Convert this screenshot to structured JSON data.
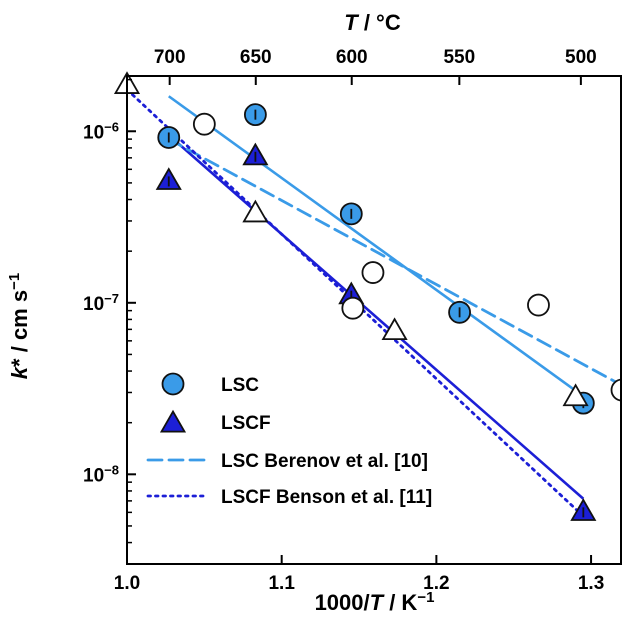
{
  "chart_data": {
    "type": "scatter",
    "xlabel": "1000/T / K⁻¹",
    "ylabel": "k* / cm s⁻¹",
    "top_xlabel": "T / °C",
    "xlim": [
      1.0,
      1.32
    ],
    "ylim": [
      3e-09,
      2.1e-06
    ],
    "yscale": "log",
    "x_ticks": [
      1.0,
      1.1,
      1.2,
      1.3
    ],
    "x_tick_labels": [
      "1.0",
      "1.1",
      "1.2",
      "1.3"
    ],
    "y_tick_values": [
      1e-08,
      1e-07,
      1e-06
    ],
    "y_tick_labels": [
      {
        "base": "10",
        "exp": "−8"
      },
      {
        "base": "10",
        "exp": "−7"
      },
      {
        "base": "10",
        "exp": "−6"
      }
    ],
    "top_ticks_celsius": [
      700,
      650,
      600,
      550,
      500
    ],
    "top_tick_labels": [
      "700",
      "650",
      "600",
      "550",
      "500"
    ],
    "grid": false,
    "legend_position": "bottom-left",
    "series": [
      {
        "name": "LSC",
        "kind": "marker",
        "marker": "circle",
        "color": "#3a9be8",
        "edge": "#111111",
        "points": [
          {
            "x": 1.027,
            "y": 9.2e-07
          },
          {
            "x": 1.083,
            "y": 1.25e-06
          },
          {
            "x": 1.145,
            "y": 3.3e-07
          },
          {
            "x": 1.215,
            "y": 8.8e-08
          },
          {
            "x": 1.295,
            "y": 2.6e-08
          }
        ]
      },
      {
        "name": "LSCF",
        "kind": "marker",
        "marker": "triangle",
        "color": "#1c1fd6",
        "edge": "#111111",
        "points": [
          {
            "x": 1.027,
            "y": 5.1e-07
          },
          {
            "x": 1.083,
            "y": 7.1e-07
          },
          {
            "x": 1.145,
            "y": 1.1e-07
          },
          {
            "x": 1.295,
            "y": 6e-09
          }
        ]
      },
      {
        "name": "LSC Berenov et al. [10]",
        "kind": "line",
        "dash": "dashed",
        "color": "#3a9be8",
        "line": [
          {
            "x": 1.027,
            "y": 9e-07
          },
          {
            "x": 1.32,
            "y": 3.3e-08
          }
        ],
        "points": [
          {
            "x": 1.05,
            "y": 1.1e-06
          },
          {
            "x": 1.146,
            "y": 9.3e-08
          },
          {
            "x": 1.159,
            "y": 1.5e-07
          },
          {
            "x": 1.266,
            "y": 9.7e-08
          },
          {
            "x": 1.32,
            "y": 3.1e-08
          }
        ]
      },
      {
        "name": "LSCF Benson et al. [11]",
        "kind": "line",
        "dash": "dotted",
        "color": "#1c1fd6",
        "line": [
          {
            "x": 1.0,
            "y": 1.75e-06
          },
          {
            "x": 1.295,
            "y": 5.7e-09
          }
        ],
        "points": [
          {
            "x": 1.0,
            "y": 1.85e-06
          },
          {
            "x": 1.083,
            "y": 3.3e-07
          },
          {
            "x": 1.173,
            "y": 6.8e-08
          },
          {
            "x": 1.29,
            "y": 2.8e-08
          }
        ]
      }
    ],
    "fits": [
      {
        "color": "#3a9be8",
        "from": {
          "x": 1.027,
          "y": 1.6e-06
        },
        "to": {
          "x": 1.295,
          "y": 2.85e-08
        }
      },
      {
        "color": "#1c1fd6",
        "from": {
          "x": 1.027,
          "y": 9.5e-07
        },
        "to": {
          "x": 1.295,
          "y": 7.2e-09
        }
      }
    ]
  }
}
